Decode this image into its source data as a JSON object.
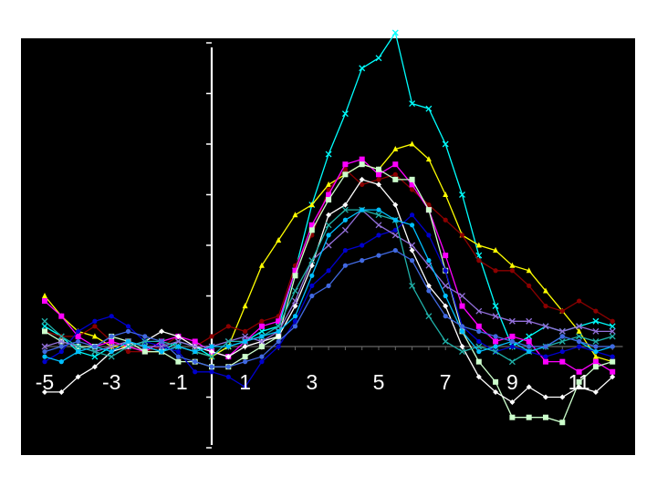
{
  "chart_data": {
    "type": "line",
    "title": "",
    "xlabel": "",
    "ylabel": "",
    "xlim": [
      -5.5,
      12.5
    ],
    "ylim": [
      -2,
      6
    ],
    "x_ticks": [
      -5,
      -3,
      -1,
      1,
      3,
      5,
      7,
      9,
      11
    ],
    "x_tick_labels": [
      "-5",
      "-3",
      "-1",
      "1",
      "3",
      "5",
      "7",
      "9",
      "11"
    ],
    "y_ticks": [
      -2,
      -1,
      0,
      1,
      2,
      3,
      4,
      5,
      6
    ],
    "grid": false,
    "legend": "none",
    "background": "#000000",
    "axis_color": "#ffffff",
    "x": [
      -5,
      -4.5,
      -4,
      -3.5,
      -3,
      -2.5,
      -2,
      -1.5,
      -1,
      -0.5,
      0,
      0.5,
      1,
      1.5,
      2,
      2.5,
      3,
      3.5,
      4,
      4.5,
      5,
      5.5,
      6,
      6.5,
      7,
      7.5,
      8,
      8.5,
      9,
      9.5,
      10,
      10.5,
      11,
      11.5,
      12
    ],
    "series": [
      {
        "color": "#00ffff",
        "marker": "x",
        "values": [
          0.4,
          0.2,
          -0.1,
          -0.2,
          0.0,
          0.1,
          0.0,
          -0.1,
          0.1,
          0.0,
          -0.2,
          0.0,
          0.1,
          0.3,
          0.4,
          1.5,
          2.8,
          3.8,
          4.6,
          5.5,
          5.7,
          6.2,
          4.8,
          4.7,
          4.0,
          3.0,
          1.8,
          0.8,
          0.0,
          0.2,
          0.4,
          0.3,
          0.4,
          0.5,
          0.4
        ]
      },
      {
        "color": "#ffff00",
        "marker": "triangle",
        "values": [
          1.0,
          0.6,
          0.3,
          0.2,
          0.0,
          0.0,
          -0.1,
          -0.1,
          0.0,
          -0.1,
          -0.2,
          0.0,
          0.8,
          1.6,
          2.1,
          2.6,
          2.8,
          3.2,
          3.4,
          3.6,
          3.5,
          3.9,
          4.0,
          3.7,
          3.0,
          2.2,
          2.0,
          1.9,
          1.6,
          1.5,
          1.1,
          0.7,
          0.3,
          -0.2,
          -0.3
        ]
      },
      {
        "color": "#8b0000",
        "marker": "circle",
        "values": [
          0.3,
          0.2,
          0.2,
          0.4,
          0.1,
          -0.1,
          -0.1,
          0.0,
          0.2,
          0.0,
          0.2,
          0.4,
          0.3,
          0.5,
          0.6,
          1.6,
          2.2,
          3.1,
          3.5,
          3.2,
          3.3,
          3.4,
          3.1,
          2.8,
          2.5,
          2.2,
          1.7,
          1.5,
          1.5,
          1.2,
          0.8,
          0.7,
          0.9,
          0.7,
          0.5
        ]
      },
      {
        "color": "#ff00ff",
        "marker": "square",
        "values": [
          0.9,
          0.6,
          0.2,
          0.0,
          0.1,
          0.0,
          -0.1,
          0.1,
          0.2,
          0.1,
          -0.1,
          -0.2,
          0.1,
          0.4,
          0.5,
          1.5,
          2.4,
          3.0,
          3.6,
          3.7,
          3.4,
          3.6,
          3.2,
          2.7,
          1.8,
          0.8,
          0.4,
          0.1,
          0.2,
          0.1,
          -0.3,
          -0.3,
          -0.5,
          -0.3,
          -0.5
        ]
      },
      {
        "color": "#ccffcc",
        "marker": "square",
        "values": [
          0.3,
          0.1,
          0.0,
          0.0,
          0.2,
          0.1,
          -0.1,
          -0.1,
          -0.3,
          -0.3,
          -0.4,
          -0.4,
          -0.2,
          0.0,
          0.2,
          1.4,
          2.3,
          2.9,
          3.4,
          3.6,
          3.5,
          3.3,
          3.3,
          2.7,
          1.5,
          0.3,
          -0.3,
          -0.7,
          -1.4,
          -1.4,
          -1.4,
          -1.5,
          -0.7,
          -0.4,
          -0.3
        ]
      },
      {
        "color": "#ffffff",
        "marker": "diamond",
        "values": [
          -0.9,
          -0.9,
          -0.6,
          -0.4,
          -0.1,
          0.0,
          0.1,
          0.3,
          0.2,
          0.0,
          -0.1,
          -0.2,
          0.0,
          0.1,
          0.2,
          0.8,
          1.6,
          2.6,
          2.8,
          3.3,
          3.2,
          2.8,
          1.9,
          1.2,
          0.8,
          0.0,
          -0.6,
          -0.9,
          -1.1,
          -0.8,
          -1.0,
          -1.0,
          -0.8,
          -0.9,
          -0.6
        ]
      },
      {
        "color": "#0000cd",
        "marker": "circle",
        "values": [
          -0.3,
          -0.1,
          0.3,
          0.5,
          0.6,
          0.4,
          0.1,
          0.0,
          -0.1,
          -0.5,
          -0.5,
          -0.6,
          -0.8,
          -0.3,
          0.0,
          0.5,
          1.2,
          1.5,
          1.9,
          2.0,
          2.2,
          2.3,
          2.6,
          2.2,
          1.5,
          0.4,
          0.1,
          -0.1,
          0.0,
          -0.1,
          -0.2,
          -0.1,
          0.0,
          -0.1,
          -0.2
        ]
      },
      {
        "color": "#9370db",
        "marker": "x",
        "values": [
          0.0,
          0.1,
          0.0,
          -0.1,
          0.0,
          0.1,
          0.0,
          0.0,
          0.1,
          0.0,
          0.0,
          0.1,
          0.2,
          0.1,
          0.3,
          0.9,
          1.7,
          2.0,
          2.3,
          2.7,
          2.4,
          2.2,
          2.0,
          1.6,
          1.2,
          1.0,
          0.7,
          0.6,
          0.5,
          0.5,
          0.4,
          0.3,
          0.4,
          0.3,
          0.3
        ]
      },
      {
        "color": "#20b2aa",
        "marker": "x",
        "values": [
          0.5,
          0.2,
          0.0,
          -0.1,
          -0.2,
          0.0,
          0.1,
          0.1,
          0.0,
          -0.1,
          -0.2,
          0.1,
          0.1,
          0.2,
          0.4,
          1.1,
          1.7,
          2.4,
          2.7,
          2.7,
          2.6,
          2.5,
          1.2,
          0.6,
          0.1,
          -0.1,
          0.0,
          -0.1,
          -0.3,
          -0.1,
          0.0,
          0.1,
          0.2,
          0.1,
          0.2
        ]
      },
      {
        "color": "#00bfff",
        "marker": "circle",
        "values": [
          -0.2,
          -0.3,
          -0.1,
          0.0,
          -0.1,
          0.1,
          0.0,
          -0.1,
          0.0,
          -0.1,
          0.0,
          0.0,
          0.1,
          0.2,
          0.3,
          0.6,
          1.4,
          2.2,
          2.5,
          2.7,
          2.7,
          2.5,
          2.4,
          1.7,
          1.0,
          0.3,
          -0.1,
          0.0,
          0.1,
          -0.1,
          0.0,
          0.2,
          0.1,
          -0.1,
          0.0
        ]
      },
      {
        "color": "#4169e1",
        "marker": "circle",
        "values": [
          -0.1,
          0.0,
          0.1,
          0.0,
          0.2,
          0.3,
          0.2,
          0.1,
          -0.2,
          -0.3,
          -0.4,
          -0.4,
          -0.3,
          -0.2,
          0.1,
          0.4,
          1.0,
          1.2,
          1.6,
          1.7,
          1.8,
          1.9,
          1.7,
          1.1,
          0.6,
          0.4,
          0.3,
          0.2,
          0.1,
          0.0,
          0.0,
          0.2,
          0.1,
          0.0,
          0.0
        ]
      }
    ]
  }
}
